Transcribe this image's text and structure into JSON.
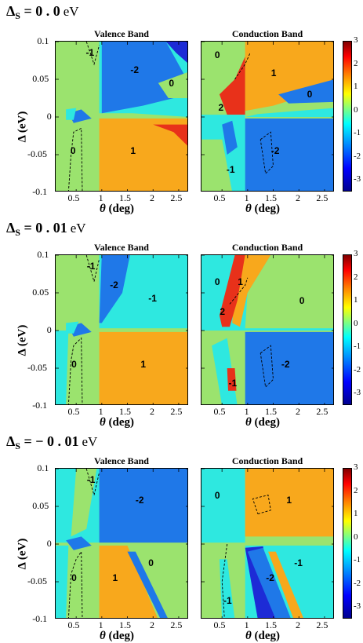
{
  "rows": [
    {
      "title_main": "Δ",
      "title_sub": "S",
      "title_value": " = 0 . 0",
      "title_unit": "eV",
      "valence": {
        "title": "Valence Band",
        "labels": [
          {
            "text": "-1",
            "theta": 0.78,
            "delta": 0.085
          },
          {
            "text": "-2",
            "theta": 1.65,
            "delta": 0.062
          },
          {
            "text": "0",
            "theta": 2.4,
            "delta": 0.045
          },
          {
            "text": "0",
            "theta": 0.48,
            "delta": -0.045
          },
          {
            "text": "1",
            "theta": 1.65,
            "delta": -0.045
          }
        ]
      },
      "conduction": {
        "title": "Conduction Band",
        "labels": [
          {
            "text": "0",
            "theta": 0.45,
            "delta": 0.082
          },
          {
            "text": "1",
            "theta": 1.55,
            "delta": 0.058
          },
          {
            "text": "0",
            "theta": 2.25,
            "delta": 0.03
          },
          {
            "text": "2",
            "theta": 0.52,
            "delta": 0.013
          },
          {
            "text": "-1",
            "theta": 0.68,
            "delta": -0.07
          },
          {
            "text": "-2",
            "theta": 1.55,
            "delta": -0.045
          }
        ]
      }
    },
    {
      "title_main": "Δ",
      "title_sub": "S",
      "title_value": " = 0 . 01",
      "title_unit": "eV",
      "valence": {
        "title": "Valence Band",
        "labels": [
          {
            "text": "-1",
            "theta": 0.8,
            "delta": 0.085
          },
          {
            "text": "-2",
            "theta": 1.25,
            "delta": 0.06
          },
          {
            "text": "-1",
            "theta": 2.0,
            "delta": 0.043
          },
          {
            "text": "0",
            "theta": 0.5,
            "delta": -0.045
          },
          {
            "text": "1",
            "theta": 1.85,
            "delta": -0.045
          }
        ]
      },
      "conduction": {
        "title": "Conduction Band",
        "labels": [
          {
            "text": "0",
            "theta": 0.45,
            "delta": 0.065
          },
          {
            "text": "1",
            "theta": 0.9,
            "delta": 0.065
          },
          {
            "text": "0",
            "theta": 2.1,
            "delta": 0.04
          },
          {
            "text": "2",
            "theta": 0.55,
            "delta": 0.025
          },
          {
            "text": "-1",
            "theta": 0.72,
            "delta": -0.07
          },
          {
            "text": "-2",
            "theta": 1.75,
            "delta": -0.045
          }
        ]
      }
    },
    {
      "title_main": "Δ",
      "title_sub": "S",
      "title_value": " = − 0 . 01",
      "title_unit": "eV",
      "valence": {
        "title": "Valence Band",
        "labels": [
          {
            "text": "-1",
            "theta": 0.8,
            "delta": 0.085
          },
          {
            "text": "-2",
            "theta": 1.75,
            "delta": 0.058
          },
          {
            "text": "0",
            "theta": 2.0,
            "delta": -0.025
          },
          {
            "text": "0",
            "theta": 0.5,
            "delta": -0.045
          },
          {
            "text": "1",
            "theta": 1.3,
            "delta": -0.045
          }
        ]
      },
      "conduction": {
        "title": "Conduction Band",
        "labels": [
          {
            "text": "0",
            "theta": 0.45,
            "delta": 0.065
          },
          {
            "text": "1",
            "theta": 1.85,
            "delta": 0.058
          },
          {
            "text": "-1",
            "theta": 2.0,
            "delta": -0.025
          },
          {
            "text": "-2",
            "theta": 1.45,
            "delta": -0.045
          },
          {
            "text": "-1",
            "theta": 0.62,
            "delta": -0.075
          }
        ]
      }
    }
  ],
  "chart_data": [
    {
      "type": "heatmap",
      "title": "Δ_S = 0.0 eV",
      "panels": [
        "Valence Band",
        "Conduction Band"
      ],
      "xlabel": "θ (deg)",
      "ylabel": "Δ (eV)",
      "xlim": [
        0.1,
        2.7
      ],
      "ylim": [
        -0.1,
        0.1
      ],
      "xticks": [
        "0.5",
        "1",
        "1.5",
        "2",
        "2.5"
      ],
      "yticks": [
        "0.1",
        "0.05",
        "0",
        "-0.05",
        "-0.1"
      ],
      "colorbar": {
        "range": [
          -3.5,
          3
        ],
        "ticks": [
          "3",
          "2",
          "1",
          "0",
          "-1",
          "-2",
          "-3"
        ]
      }
    },
    {
      "type": "heatmap",
      "title": "Δ_S = 0.01 eV",
      "panels": [
        "Valence Band",
        "Conduction Band"
      ],
      "xlabel": "θ (deg)",
      "ylabel": "Δ (eV)",
      "xlim": [
        0.1,
        2.7
      ],
      "ylim": [
        -0.1,
        0.1
      ],
      "xticks": [
        "0.5",
        "1",
        "1.5",
        "2",
        "2.5"
      ],
      "yticks": [
        "0.1",
        "0.05",
        "0",
        "-0.05",
        "-0.1"
      ],
      "colorbar": {
        "range": [
          -3.5,
          3
        ],
        "ticks": [
          "3",
          "2",
          "1",
          "0",
          "-1",
          "-2",
          "-3"
        ]
      }
    },
    {
      "type": "heatmap",
      "title": "Δ_S = −0.01 eV",
      "panels": [
        "Valence Band",
        "Conduction Band"
      ],
      "xlabel": "θ (deg)",
      "ylabel": "Δ (eV)",
      "xlim": [
        0.1,
        2.7
      ],
      "ylim": [
        -0.1,
        0.1
      ],
      "xticks": [
        "0.5",
        "1",
        "1.5",
        "2",
        "2.5"
      ],
      "yticks": [
        "0.1",
        "0.05",
        "0",
        "-0.05",
        "-0.1"
      ],
      "colorbar": {
        "range": [
          -3.5,
          3
        ],
        "ticks": [
          "3",
          "2",
          "1",
          "0",
          "-1",
          "-2",
          "-3"
        ]
      }
    }
  ],
  "axis": {
    "xlabel_sym": "θ",
    "xlabel_unit": " (deg)",
    "ylabel_sym": "Δ",
    "ylabel_unit": " (eV)",
    "xticks": [
      "0.5",
      "1",
      "1.5",
      "2",
      "2.5"
    ],
    "xtick_vals": [
      0.5,
      1,
      1.5,
      2,
      2.5
    ],
    "yticks": [
      "0.1",
      "0.05",
      "0",
      "-0.05",
      "-0.1"
    ],
    "ytick_vals": [
      0.1,
      0.05,
      0,
      -0.05,
      -0.1
    ],
    "xlim": [
      0.1,
      2.7
    ],
    "ylim": [
      -0.1,
      0.1
    ]
  },
  "colorbar": {
    "ticks": [
      "3",
      "2",
      "1",
      "0",
      "-1",
      "-2",
      "-3"
    ],
    "tick_vals": [
      3,
      2,
      1,
      0,
      -1,
      -2,
      -3
    ],
    "range": [
      -3.5,
      3
    ]
  },
  "colors": {
    "c_neg3": "#1d2bd6",
    "c_neg2": "#1f78e8",
    "c_neg1": "#2ee8e0",
    "c_0": "#9be36e",
    "c_1": "#f8a81c",
    "c_2": "#e8311a",
    "c_3": "#8a0a0a"
  }
}
